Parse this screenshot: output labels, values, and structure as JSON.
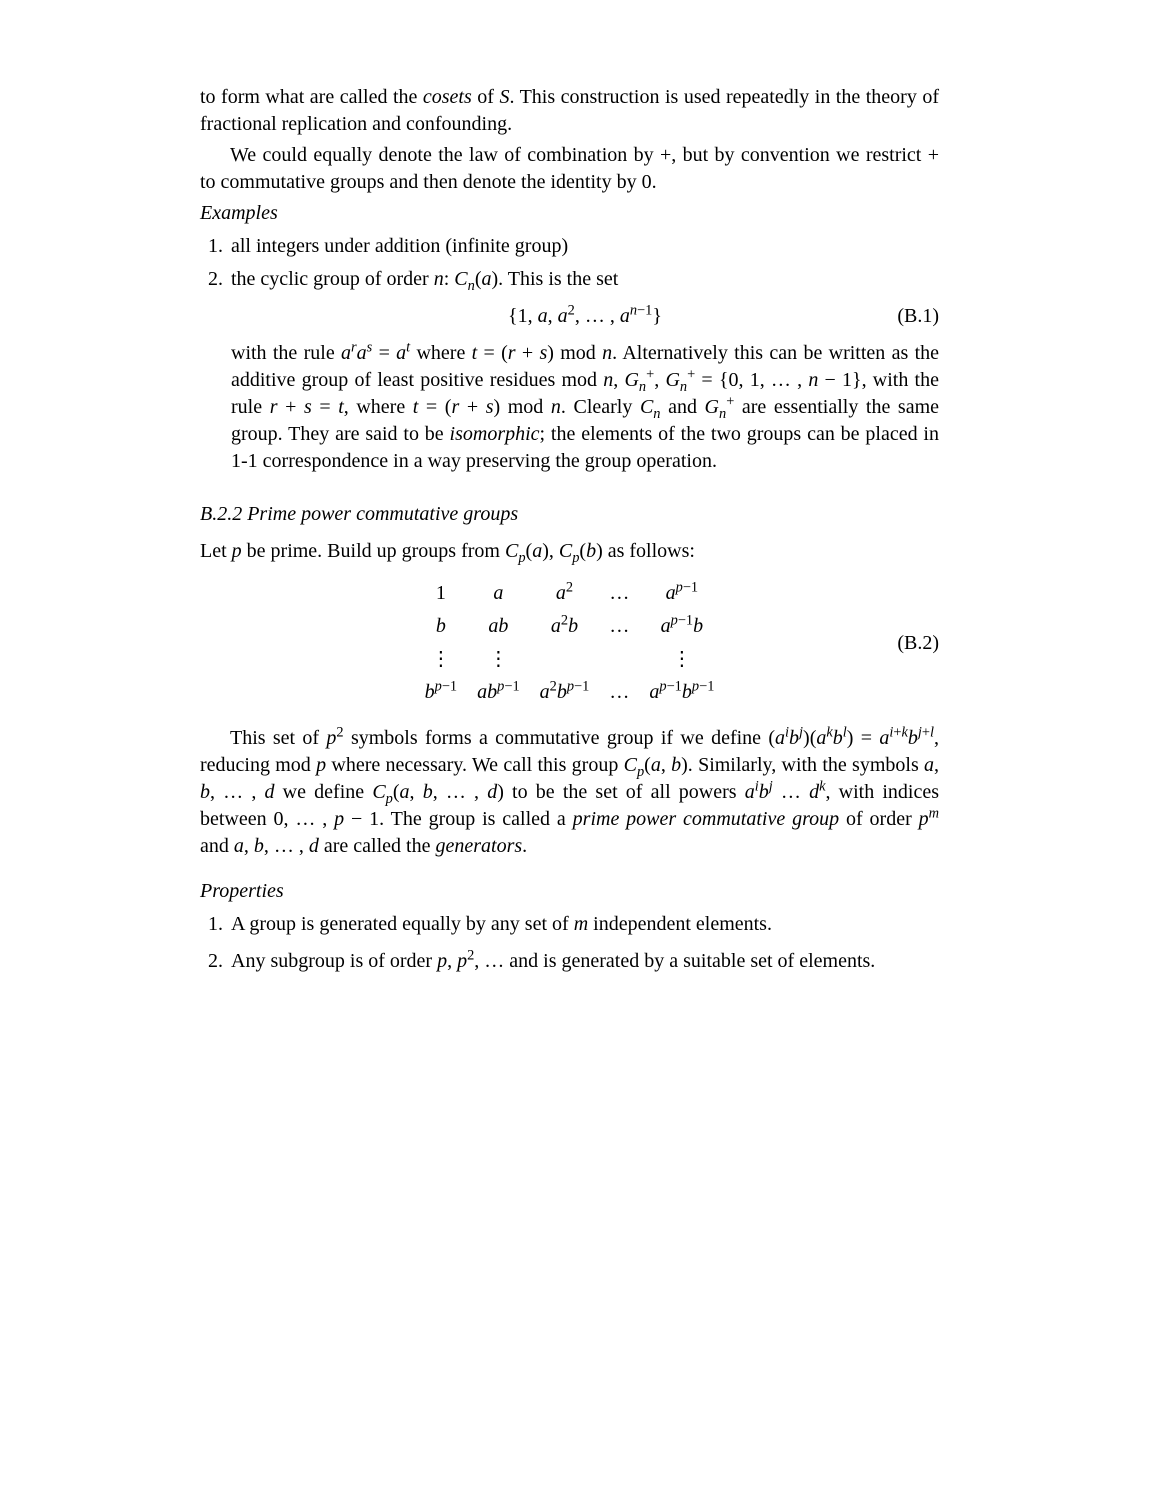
{
  "para1": "to form what are called the <i>cosets</i> of <span class=\"cal\">S</span>. This construction is used repeatedly in the theory of fractional replication and confounding.",
  "para2": "We could equally denote the law of combination by +, but by convention we restrict + to commutative groups and then denote the identity by 0.",
  "examples_heading": "Examples",
  "enum1_item1": "all integers under addition (infinite group)",
  "enum1_item2_lead": "the cyclic group of order <i>n</i>: <span class=\"cal\">C</span><span class=\"sub\"><i>n</i></span>(<i>a</i>). This is the set",
  "eqB1": "{1, <i>a</i>, <i>a</i><span class=\"sup\">2</span>, … , <i>a</i><span class=\"sup\"><i>n</i>−1</span>}",
  "eqB1_num": "(B.1)",
  "enum1_item2_tail": "with the rule <i>a</i><span class=\"sup\"><i>r</i></span><i>a</i><span class=\"sup\"><i>s</i></span> = <i>a</i><span class=\"sup\"><i>t</i></span> where <i>t</i> = (<i>r</i> + <i>s</i>) mod <i>n</i>. Alternatively this can be written as the additive group of least positive residues mod <i>n</i>, <i>G</i><span class=\"sub\"><i>n</i></span><span class=\"sup\">+</span>, <i>G</i><span class=\"sub\"><i>n</i></span><span class=\"sup\">+</span> = {0, 1, … , <i>n</i> − 1}, with the rule <i>r</i> + <i>s</i> = <i>t</i>, where <i>t</i> = (<i>r</i> + <i>s</i>) mod <i>n</i>. Clearly <i>C</i><span class=\"sub\"><i>n</i></span> and <i>G</i><span class=\"sub\"><i>n</i></span><span class=\"sup\">+</span> are essentially the same group. They are said to be <i>isomorphic</i>; the elements of the two groups can be placed in 1-1 correspondence in a way preserving the group operation.",
  "subsection_heading": "B.2.2  Prime power commutative groups",
  "para3": "Let <i>p</i> be prime. Build up groups from <span class=\"cal\">C</span><span class=\"sub\"><i>p</i></span>(<i>a</i>), <span class=\"cal\">C</span><span class=\"sub\"><i>p</i></span>(<i>b</i>) as follows:",
  "eqB2_num": "(B.2)",
  "matrix": [
    [
      "1",
      "<i>a</i>",
      "<i>a</i><span class=\"sup\">2</span>",
      "…",
      "<i>a</i><span class=\"sup\"><i>p</i>−1</span>"
    ],
    [
      "<i>b</i>",
      "<i>ab</i>",
      "<i>a</i><span class=\"sup\">2</span><i>b</i>",
      "…",
      "<i>a</i><span class=\"sup\"><i>p</i>−1</span><i>b</i>"
    ],
    [
      "⋮",
      "⋮",
      "",
      "",
      "⋮"
    ],
    [
      "<i>b</i><span class=\"sup\"><i>p</i>−1</span>",
      "<i>ab</i><span class=\"sup\"><i>p</i>−1</span>",
      "<i>a</i><span class=\"sup\">2</span><i>b</i><span class=\"sup\"><i>p</i>−1</span>",
      "…",
      "<i>a</i><span class=\"sup\"><i>p</i>−1</span><i>b</i><span class=\"sup\"><i>p</i>−1</span>"
    ]
  ],
  "para4": "This set of <i>p</i><span class=\"sup\">2</span> symbols forms a commutative group if we define (<i>a</i><span class=\"sup\"><i>i</i></span><i>b</i><span class=\"sup\"><i>j</i></span>)(<i>a</i><span class=\"sup\"><i>k</i></span><i>b</i><span class=\"sup\"><i>l</i></span>) = <i>a</i><span class=\"sup\"><i>i</i>+<i>k</i></span><i>b</i><span class=\"sup\"><i>j</i>+<i>l</i></span>, reducing mod <i>p</i> where necessary. We call this group <span class=\"cal\">C</span><span class=\"sub\"><i>p</i></span>(<i>a</i>, <i>b</i>). Similarly, with the symbols <i>a</i>, <i>b</i>, … , <i>d</i> we define <span class=\"cal\">C</span><span class=\"sub\"><i>p</i></span>(<i>a</i>, <i>b</i>, … , <i>d</i>) to be the set of all powers <i>a</i><span class=\"sup\"><i>i</i></span><i>b</i><span class=\"sup\"><i>j</i></span> … <i>d</i><span class=\"sup\"><i>k</i></span>, with indices between 0, … , <i>p</i> − 1. The group is called a <i>prime power commutative group</i> of order <i>p</i><span class=\"sup\"><i>m</i></span> and <i>a</i>, <i>b</i>, … , <i>d</i> are called the <i>generators</i>.",
  "properties_heading": "Properties",
  "enum2_item1": "A group is generated equally by any set of <i>m</i> independent elements.",
  "enum2_item2": "Any subgroup is of order <i>p</i>, <i>p</i><span class=\"sup\">2</span>, … and is generated by a suitable set of elements."
}
